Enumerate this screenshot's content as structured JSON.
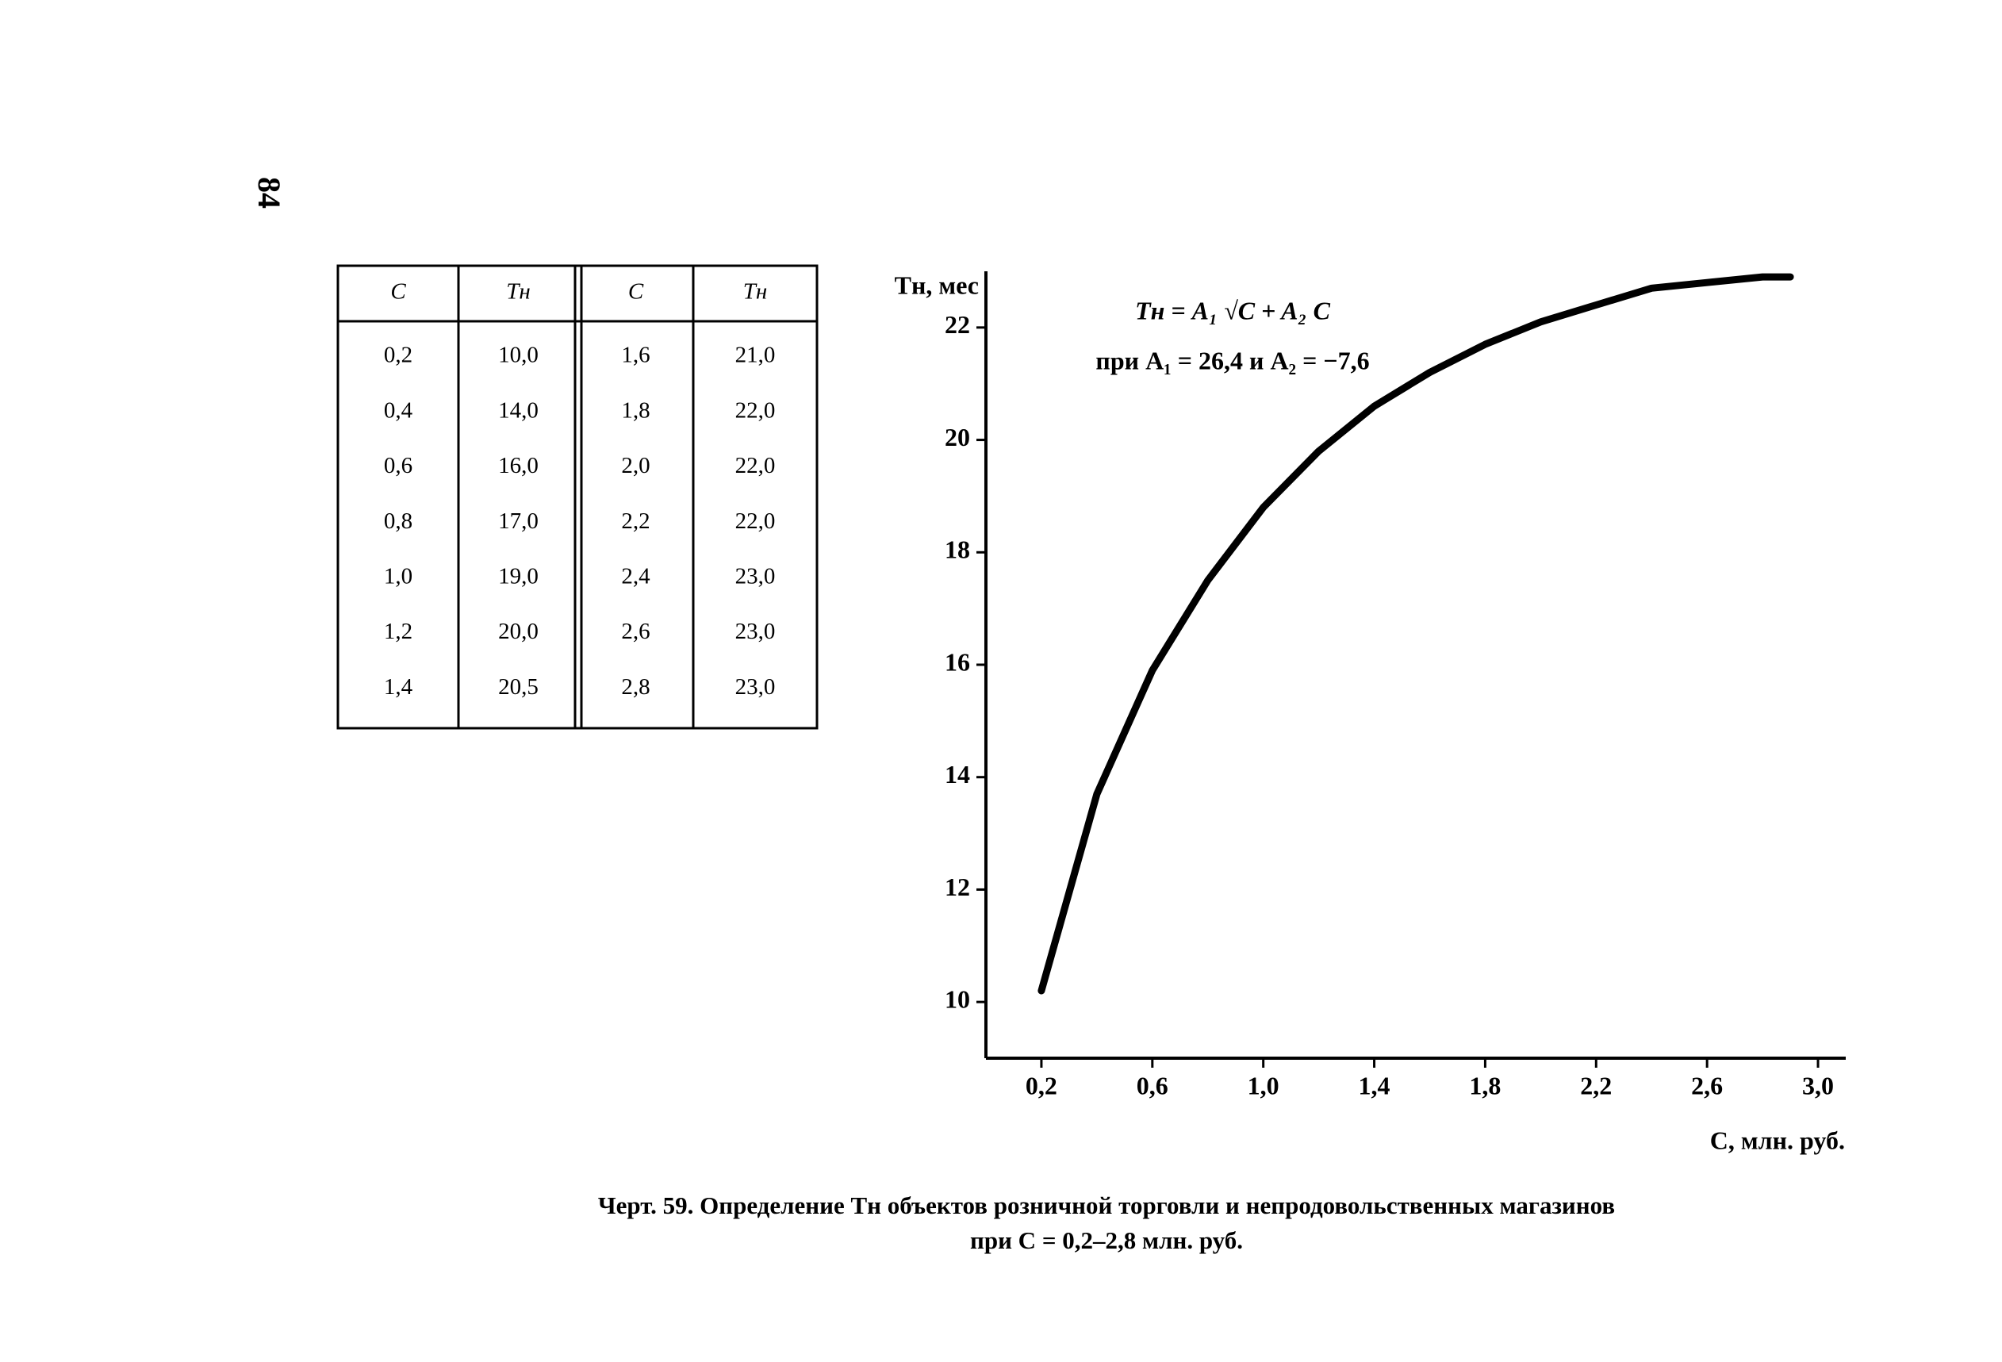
{
  "page_number": "84",
  "table": {
    "header": [
      "C",
      "Tн",
      "C",
      "Tн"
    ],
    "rows": [
      [
        "0,2",
        "10,0",
        "1,6",
        "21,0"
      ],
      [
        "0,4",
        "14,0",
        "1,8",
        "22,0"
      ],
      [
        "0,6",
        "16,0",
        "2,0",
        "22,0"
      ],
      [
        "0,8",
        "17,0",
        "2,2",
        "22,0"
      ],
      [
        "1,0",
        "19,0",
        "2,4",
        "23,0"
      ],
      [
        "1,2",
        "20,0",
        "2,6",
        "23,0"
      ],
      [
        "1,4",
        "20,5",
        "2,8",
        "23,0"
      ]
    ]
  },
  "chart_data": {
    "type": "line",
    "y_label": "Tн, мес",
    "x_label": "C, млн. руб.",
    "annotations": [
      "Tн = A₁ √C + A₂ C",
      "при A₁ = 26,4 и A₂ = −7,6"
    ],
    "x": [
      0.2,
      0.4,
      0.6,
      0.8,
      1.0,
      1.2,
      1.4,
      1.6,
      1.8,
      2.0,
      2.2,
      2.4,
      2.6,
      2.8,
      2.9
    ],
    "values": [
      10.2,
      13.7,
      15.9,
      17.5,
      18.8,
      19.8,
      20.6,
      21.2,
      21.7,
      22.1,
      22.4,
      22.7,
      22.8,
      22.9,
      22.9
    ],
    "color": "#000000",
    "xlim": [
      0,
      3.1
    ],
    "ylim": [
      9,
      23
    ],
    "xticks": [
      {
        "value": 0.2,
        "label": "0,2"
      },
      {
        "value": 0.6,
        "label": "0,6"
      },
      {
        "value": 1.0,
        "label": "1,0"
      },
      {
        "value": 1.4,
        "label": "1,4"
      },
      {
        "value": 1.8,
        "label": "1,8"
      },
      {
        "value": 2.2,
        "label": "2,2"
      },
      {
        "value": 2.6,
        "label": "2,6"
      },
      {
        "value": 3.0,
        "label": "3,0"
      }
    ],
    "yticks": [
      10,
      12,
      14,
      16,
      18,
      20,
      22
    ]
  },
  "caption": [
    "Черт. 59. Определение Tн объектов розничной торговли и непродовольственных магазинов",
    "при C = 0,2–2,8 млн. руб."
  ]
}
